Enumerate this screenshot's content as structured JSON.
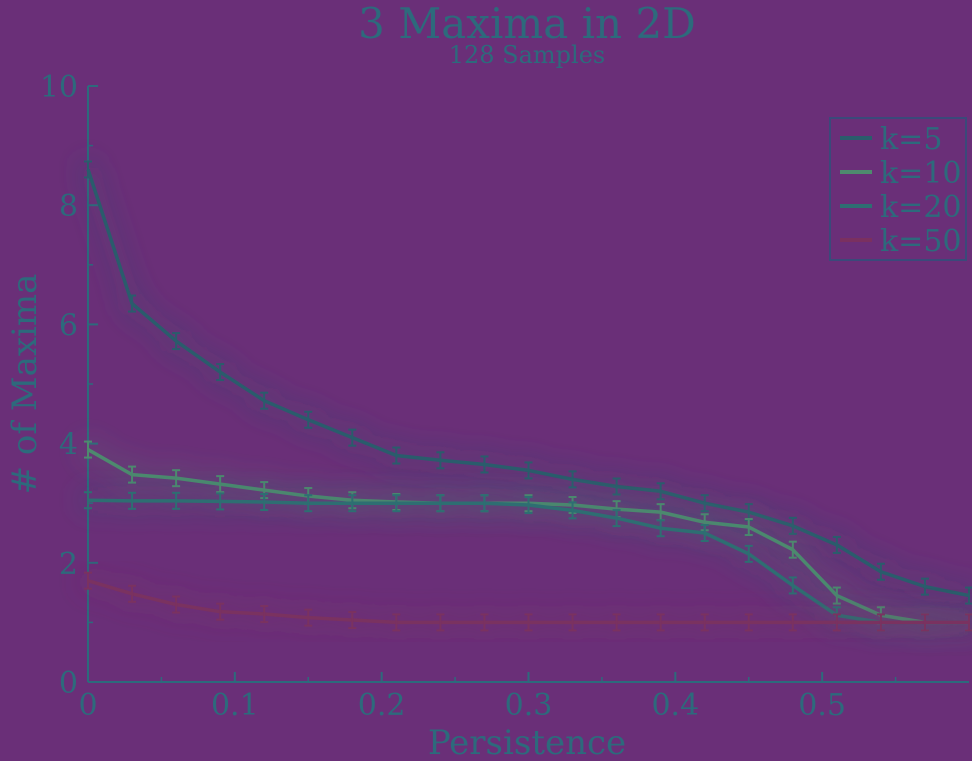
{
  "chart_data": {
    "type": "line",
    "title": "3 Maxima in 2D",
    "subtitle": "128 Samples",
    "xlabel": "Persistence",
    "ylabel": "# of Maxima",
    "xlim": [
      0,
      0.6
    ],
    "ylim": [
      0,
      10
    ],
    "x_ticks": [
      0,
      0.1,
      0.2,
      0.3,
      0.4,
      0.5
    ],
    "x_tick_labels": [
      "0",
      "0.1",
      "0.2",
      "0.3",
      "0.4",
      "0.5"
    ],
    "y_ticks": [
      0,
      2,
      4,
      6,
      8,
      10
    ],
    "y_tick_labels": [
      "0",
      "2",
      "4",
      "6",
      "8",
      "10"
    ],
    "legend_position": "top-right",
    "grid": false,
    "error_bars": true,
    "x": [
      0,
      0.03,
      0.06,
      0.09,
      0.12,
      0.15,
      0.18,
      0.21,
      0.24,
      0.27,
      0.3,
      0.33,
      0.36,
      0.39,
      0.42,
      0.45,
      0.48,
      0.51,
      0.54,
      0.57,
      0.6
    ],
    "series": [
      {
        "name": "k=5",
        "color": "#2a5c6c",
        "values": [
          8.6,
          6.35,
          5.72,
          5.2,
          4.72,
          4.4,
          4.1,
          3.8,
          3.72,
          3.65,
          3.55,
          3.4,
          3.28,
          3.2,
          3.0,
          2.85,
          2.62,
          2.3,
          1.85,
          1.6,
          1.45
        ]
      },
      {
        "name": "k=10",
        "color": "#4e8a6e",
        "values": [
          3.9,
          3.48,
          3.42,
          3.32,
          3.22,
          3.12,
          3.05,
          3.02,
          3.0,
          3.0,
          3.0,
          2.97,
          2.9,
          2.85,
          2.68,
          2.6,
          2.22,
          1.45,
          1.12,
          1.0,
          1.0
        ]
      },
      {
        "name": "k=20",
        "color": "#2d6e72",
        "values": [
          3.05,
          3.04,
          3.04,
          3.03,
          3.02,
          3.0,
          3.0,
          3.0,
          3.0,
          3.0,
          2.97,
          2.88,
          2.75,
          2.58,
          2.5,
          2.15,
          1.62,
          1.12,
          1.0,
          1.0,
          1.0
        ]
      },
      {
        "name": "k=50",
        "color": "#7a3060",
        "values": [
          1.7,
          1.48,
          1.3,
          1.18,
          1.14,
          1.08,
          1.04,
          1.0,
          1.0,
          1.0,
          1.0,
          1.0,
          1.0,
          1.0,
          1.0,
          1.0,
          1.0,
          1.0,
          1.0,
          1.0,
          1.0
        ]
      }
    ]
  }
}
